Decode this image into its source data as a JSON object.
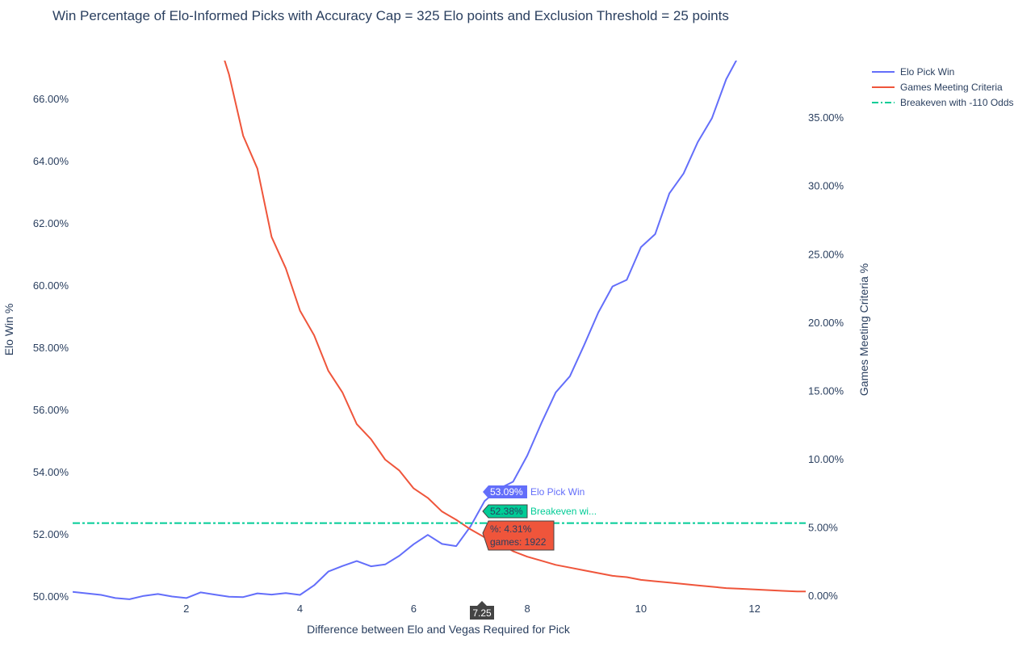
{
  "chart_data": {
    "type": "line",
    "title": "Win Percentage of Elo-Informed Picks with Accuracy Cap = 325 Elo points and Exclusion Threshold = 25 points",
    "xlabel": "Difference between Elo and Vegas Required for Pick",
    "ylabel": "Elo Win %",
    "y2label": "Games Meeting Criteria %",
    "xlim": [
      0,
      12.9
    ],
    "ylim": [
      49.85,
      67.25
    ],
    "y2lim": [
      -0.4,
      39.2
    ],
    "xticks": [
      "2",
      "4",
      "6",
      "8",
      "10",
      "12"
    ],
    "yticks": [
      "50.00%",
      "52.00%",
      "54.00%",
      "56.00%",
      "58.00%",
      "60.00%",
      "62.00%",
      "64.00%",
      "66.00%"
    ],
    "y2ticks": [
      "0.00%",
      "5.00%",
      "10.00%",
      "15.00%",
      "20.00%",
      "25.00%",
      "30.00%",
      "35.00%"
    ],
    "legend_position": "top-right",
    "colors": {
      "elo": "#636efa",
      "games": "#ef553b",
      "breakeven": "#00cc96"
    },
    "series": [
      {
        "name": "Elo Pick Win",
        "axis": "left",
        "x": [
          0,
          0.25,
          0.5,
          0.75,
          1,
          1.25,
          1.5,
          1.75,
          2,
          2.25,
          2.5,
          2.75,
          3,
          3.25,
          3.5,
          3.75,
          4,
          4.25,
          4.5,
          4.75,
          5,
          5.25,
          5.5,
          5.75,
          6,
          6.25,
          6.5,
          6.75,
          7,
          7.25,
          7.5,
          7.75,
          8,
          8.25,
          8.5,
          8.75,
          9,
          9.25,
          9.5,
          9.75,
          10,
          10.25,
          10.5,
          10.75,
          11,
          11.25,
          11.5,
          11.75
        ],
        "values": [
          50.17,
          50.12,
          50.07,
          49.97,
          49.93,
          50.04,
          50.1,
          50.02,
          49.97,
          50.15,
          50.08,
          50.01,
          50,
          50.12,
          50.08,
          50.13,
          50.07,
          50.38,
          50.82,
          51.0,
          51.16,
          50.99,
          51.05,
          51.33,
          51.7,
          52.0,
          51.71,
          51.64,
          52.27,
          53.09,
          53.48,
          53.71,
          54.55,
          55.6,
          56.58,
          57.1,
          58.1,
          59.15,
          59.99,
          60.2,
          61.25,
          61.67,
          62.98,
          63.62,
          64.63,
          65.4,
          66.65,
          67.5
        ]
      },
      {
        "name": "Games Meeting Criteria",
        "axis": "right",
        "x": [
          2.5,
          2.75,
          3,
          3.25,
          3.5,
          3.75,
          4,
          4.25,
          4.5,
          4.75,
          5,
          5.25,
          5.5,
          5.75,
          6,
          6.25,
          6.5,
          6.75,
          7,
          7.25,
          7.5,
          7.75,
          8,
          8.25,
          8.5,
          8.75,
          9,
          9.25,
          9.5,
          9.75,
          10,
          10.25,
          10.5,
          10.75,
          11,
          11.25,
          11.5,
          11.75,
          12,
          12.25,
          12.5,
          12.75,
          12.9
        ],
        "values": [
          41.5,
          38.2,
          33.7,
          31.3,
          26.3,
          24.0,
          20.9,
          19.1,
          16.5,
          14.9,
          12.6,
          11.5,
          10.0,
          9.2,
          7.9,
          7.2,
          6.2,
          5.6,
          4.9,
          4.31,
          3.9,
          3.3,
          2.9,
          2.6,
          2.3,
          2.1,
          1.9,
          1.7,
          1.5,
          1.4,
          1.2,
          1.1,
          1.0,
          0.9,
          0.8,
          0.7,
          0.6,
          0.55,
          0.5,
          0.45,
          0.4,
          0.35,
          0.35
        ]
      },
      {
        "name": "Breakeven with -110 Odds",
        "axis": "left",
        "x": [
          0,
          12.9
        ],
        "values": [
          52.38,
          52.38
        ]
      }
    ],
    "hover": {
      "x_label": "7.25",
      "elo_value": "53.09%",
      "elo_name": "Elo Pick Win",
      "breakeven_value": "52.38%",
      "breakeven_name": "Breakeven wi...",
      "games_line1": "%: 4.31%",
      "games_line2": "games: 1922"
    }
  }
}
